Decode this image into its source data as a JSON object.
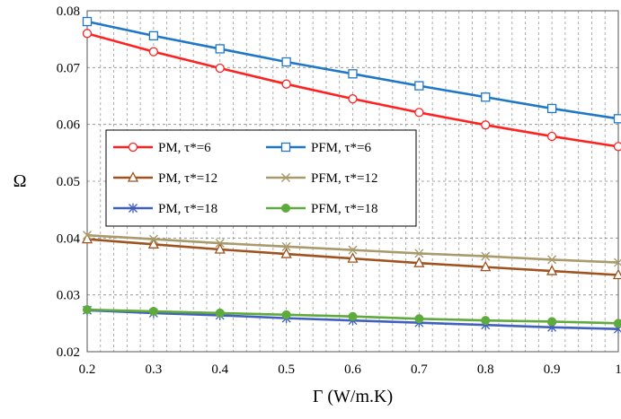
{
  "chart_data": {
    "type": "line",
    "title": "",
    "xlabel": "Γ (W/m.K)",
    "ylabel": "Ω",
    "xlim": [
      0.2,
      1.0
    ],
    "ylim": [
      0.02,
      0.08
    ],
    "x": [
      0.2,
      0.3,
      0.4,
      0.5,
      0.6,
      0.7,
      0.8,
      0.9,
      1.0
    ],
    "x_tick_labels": [
      "0.2",
      "0.3",
      "0.4",
      "0.5",
      "0.6",
      "0.7",
      "0.8",
      "0.9",
      "1"
    ],
    "y_ticks": [
      0.02,
      0.03,
      0.04,
      0.05,
      0.06,
      0.07,
      0.08
    ],
    "y_tick_labels": [
      "0.02",
      "0.03",
      "0.04",
      "0.05",
      "0.06",
      "0.07",
      "0.08"
    ],
    "grid": "dashed vertical and horizontal gridlines",
    "legend_position": "center-left, inside plot",
    "series": [
      {
        "name": "PM, τ*=6",
        "color": "#ff2020",
        "marker": "circle-open",
        "values": [
          0.076,
          0.0728,
          0.0699,
          0.0671,
          0.0645,
          0.0621,
          0.0599,
          0.0579,
          0.0561
        ]
      },
      {
        "name": "PFM, τ*=6",
        "color": "#1f77c8",
        "marker": "square-open",
        "values": [
          0.0781,
          0.0756,
          0.0733,
          0.071,
          0.0689,
          0.0668,
          0.0648,
          0.0628,
          0.061
        ]
      },
      {
        "name": "PM, τ*=12",
        "color": "#a0521e",
        "marker": "triangle-open",
        "values": [
          0.0398,
          0.0389,
          0.038,
          0.0372,
          0.0364,
          0.0356,
          0.0349,
          0.0342,
          0.0335
        ]
      },
      {
        "name": "PFM, τ*=12",
        "color": "#a89a6a",
        "marker": "x",
        "values": [
          0.0405,
          0.0398,
          0.0391,
          0.0385,
          0.0379,
          0.0373,
          0.0368,
          0.0362,
          0.0357
        ]
      },
      {
        "name": "PM, τ*=18",
        "color": "#4060c0",
        "marker": "asterisk",
        "values": [
          0.0273,
          0.0268,
          0.0264,
          0.0259,
          0.0255,
          0.0251,
          0.0247,
          0.0243,
          0.024
        ]
      },
      {
        "name": "PFM, τ*=18",
        "color": "#5faa3c",
        "marker": "circle-filled",
        "values": [
          0.0274,
          0.0271,
          0.0268,
          0.0265,
          0.0262,
          0.0258,
          0.0255,
          0.0253,
          0.025
        ]
      }
    ]
  }
}
